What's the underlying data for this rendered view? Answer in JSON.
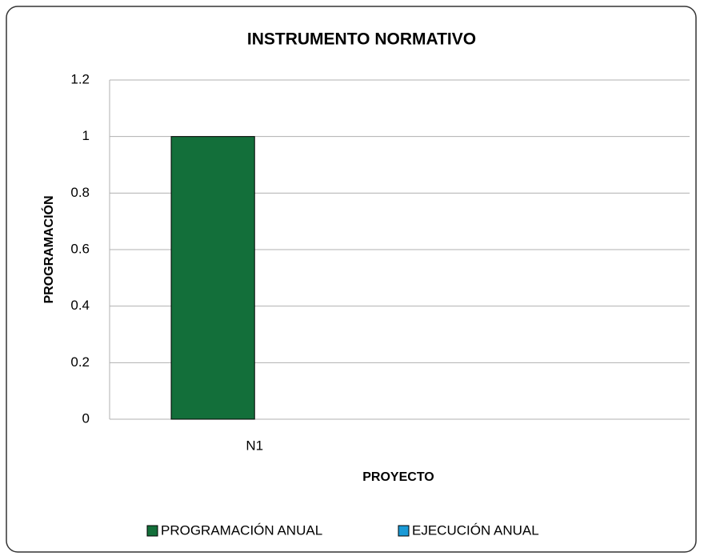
{
  "chart_data": {
    "type": "bar",
    "title": "INSTRUMENTO NORMATIVO",
    "x_label": "PROYECTO",
    "y_label": "PROGRAMACIÓN",
    "categories": [
      "N1",
      null
    ],
    "series": [
      {
        "name": "PROGRAMACIÓN ANUAL",
        "color": "#136f3a",
        "values": [
          1,
          null
        ]
      },
      {
        "name": "EJECUCIÓN ANUAL",
        "color": "#1a9ad6",
        "values": [
          0,
          null
        ]
      }
    ],
    "ylim": [
      0,
      1.2
    ],
    "yticks": [
      0,
      0.2,
      0.4,
      0.6,
      0.8,
      1,
      1.2
    ],
    "grid": true,
    "legend": "bottom"
  }
}
